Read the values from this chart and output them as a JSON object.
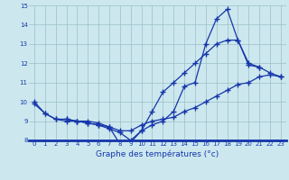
{
  "bg_color": "#cce8ee",
  "line_color": "#1535aa",
  "grid_color": "#9bbec8",
  "xlabel": "Graphe des températures (°c)",
  "ylim": [
    8,
    15
  ],
  "xlim": [
    -0.5,
    23.5
  ],
  "yticks": [
    8,
    9,
    10,
    11,
    12,
    13,
    14,
    15
  ],
  "xticks": [
    0,
    1,
    2,
    3,
    4,
    5,
    6,
    7,
    8,
    9,
    10,
    11,
    12,
    13,
    14,
    15,
    16,
    17,
    18,
    19,
    20,
    21,
    22,
    23
  ],
  "line_a_x": [
    0,
    1,
    2,
    3,
    4,
    5,
    6,
    7,
    8,
    9,
    10,
    11,
    12,
    13,
    14,
    15,
    16,
    17,
    18,
    19,
    20,
    21
  ],
  "line_a_y": [
    10.0,
    9.4,
    9.1,
    9.1,
    9.0,
    9.0,
    8.9,
    8.7,
    7.8,
    7.9,
    8.5,
    8.8,
    9.0,
    9.5,
    10.8,
    11.0,
    13.0,
    14.3,
    14.8,
    13.2,
    12.0,
    11.8
  ],
  "line_b_x": [
    0,
    1,
    2,
    3,
    4,
    5,
    6,
    7,
    8,
    9,
    10,
    11,
    12,
    13,
    14,
    15,
    16,
    17,
    18,
    19,
    20,
    21,
    22,
    23
  ],
  "line_b_y": [
    9.9,
    9.4,
    9.1,
    9.0,
    9.0,
    8.9,
    8.8,
    8.7,
    8.5,
    8.5,
    8.8,
    9.0,
    9.1,
    9.2,
    9.5,
    9.7,
    10.0,
    10.3,
    10.6,
    10.9,
    11.0,
    11.3,
    11.4,
    11.3
  ],
  "line_c_x": [
    3,
    4,
    5,
    6,
    7,
    8,
    9,
    10,
    11,
    12,
    13,
    14,
    15,
    16,
    17,
    18,
    19,
    20,
    21,
    22,
    23
  ],
  "line_c_y": [
    9.1,
    9.0,
    8.9,
    8.8,
    8.6,
    8.4,
    8.0,
    8.5,
    9.5,
    10.5,
    11.0,
    11.5,
    12.0,
    12.5,
    13.0,
    13.2,
    13.2,
    11.9,
    11.8,
    11.5,
    11.3
  ]
}
